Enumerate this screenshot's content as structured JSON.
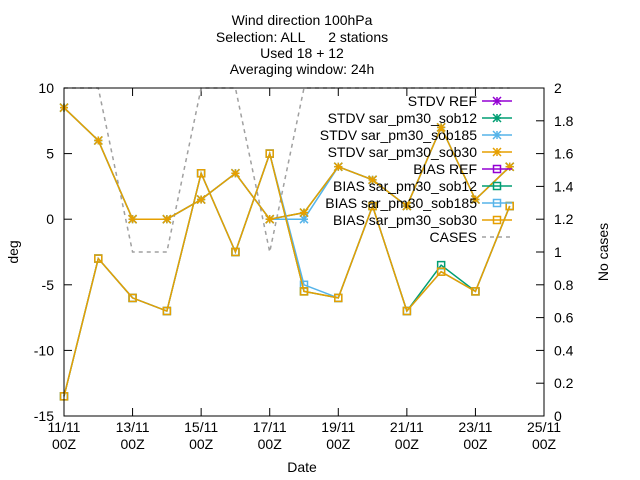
{
  "chart_data": {
    "type": "line",
    "title_lines": [
      "Wind direction 100hPa",
      "Selection: ALL      2 stations",
      "Used 18 + 12",
      "Averaging window: 24h"
    ],
    "xlabel": "Date",
    "ylabel": "deg",
    "y2label": "No cases",
    "x_ticks": [
      {
        "day": 11,
        "l1": "11/11",
        "l2": "00Z"
      },
      {
        "day": 13,
        "l1": "13/11",
        "l2": "00Z"
      },
      {
        "day": 15,
        "l1": "15/11",
        "l2": "00Z"
      },
      {
        "day": 17,
        "l1": "17/11",
        "l2": "00Z"
      },
      {
        "day": 19,
        "l1": "19/11",
        "l2": "00Z"
      },
      {
        "day": 21,
        "l1": "21/11",
        "l2": "00Z"
      },
      {
        "day": 23,
        "l1": "23/11",
        "l2": "00Z"
      },
      {
        "day": 25,
        "l1": "25/11",
        "l2": "00Z"
      }
    ],
    "xlim": [
      11,
      25
    ],
    "ylim": [
      -15,
      10
    ],
    "y_ticks": [
      -15,
      -10,
      -5,
      0,
      5,
      10
    ],
    "y2lim": [
      0,
      2
    ],
    "y2_ticks": [
      0,
      0.2,
      0.4,
      0.6,
      0.8,
      1,
      1.2,
      1.4,
      1.6,
      1.8,
      2
    ],
    "legend_position": "top-right",
    "series": [
      {
        "name": "STDV REF",
        "color": "#9400d3",
        "marker": "star",
        "points": []
      },
      {
        "name": "STDV sar_pm30_sob12",
        "color": "#009e73",
        "marker": "star",
        "points": [
          [
            11,
            8.5
          ],
          [
            12,
            6
          ],
          [
            13,
            0
          ],
          [
            14,
            0
          ],
          [
            15,
            1.5
          ],
          [
            16,
            3.5
          ],
          [
            17,
            0
          ],
          [
            18,
            0.5
          ],
          [
            19,
            4
          ],
          [
            20,
            3
          ],
          [
            21,
            1
          ],
          [
            22,
            7
          ],
          [
            23,
            1.5
          ],
          [
            24,
            4
          ]
        ]
      },
      {
        "name": "STDV sar_pm30_sob185",
        "color": "#56b4e9",
        "marker": "star",
        "points": [
          [
            11,
            8.5
          ],
          [
            12,
            6
          ],
          [
            13,
            0
          ],
          [
            14,
            0
          ],
          [
            15,
            1.5
          ],
          [
            16,
            3.5
          ],
          [
            17,
            0
          ],
          [
            18,
            0
          ],
          [
            19,
            4
          ],
          [
            20,
            3
          ],
          [
            21,
            1
          ],
          [
            22,
            7
          ],
          [
            23,
            1.5
          ],
          [
            24,
            4
          ]
        ]
      },
      {
        "name": "STDV sar_pm30_sob30",
        "color": "#e69f00",
        "marker": "star",
        "points": [
          [
            11,
            8.5
          ],
          [
            12,
            6
          ],
          [
            13,
            0
          ],
          [
            14,
            0
          ],
          [
            15,
            1.5
          ],
          [
            16,
            3.5
          ],
          [
            17,
            0
          ],
          [
            18,
            0.5
          ],
          [
            19,
            4
          ],
          [
            20,
            3
          ],
          [
            21,
            1
          ],
          [
            22,
            7
          ],
          [
            23,
            1.5
          ],
          [
            24,
            4
          ]
        ]
      },
      {
        "name": "BIAS REF",
        "color": "#9400d3",
        "marker": "square",
        "points": []
      },
      {
        "name": "BIAS sar_pm30_sob12",
        "color": "#009e73",
        "marker": "square",
        "points": [
          [
            11,
            -13.5
          ],
          [
            12,
            -3
          ],
          [
            13,
            -6
          ],
          [
            14,
            -7
          ],
          [
            15,
            3.5
          ],
          [
            16,
            -2.5
          ],
          [
            17,
            5
          ],
          [
            18,
            -5.5
          ],
          [
            19,
            -6
          ],
          [
            20,
            1
          ],
          [
            21,
            -7
          ],
          [
            22,
            -3.5
          ],
          [
            23,
            -5.5
          ],
          [
            24,
            1
          ]
        ]
      },
      {
        "name": "BIAS sar_pm30_sob185",
        "color": "#56b4e9",
        "marker": "square",
        "points": [
          [
            11,
            -13.5
          ],
          [
            12,
            -3
          ],
          [
            13,
            -6
          ],
          [
            14,
            -7
          ],
          [
            15,
            3.5
          ],
          [
            16,
            -2.5
          ],
          [
            17,
            5
          ],
          [
            18,
            -5
          ],
          [
            19,
            -6
          ],
          [
            20,
            1
          ],
          [
            21,
            -7
          ],
          [
            22,
            -4
          ],
          [
            23,
            -5.5
          ],
          [
            24,
            1
          ]
        ]
      },
      {
        "name": "BIAS sar_pm30_sob30",
        "color": "#e69f00",
        "marker": "square",
        "points": [
          [
            11,
            -13.5
          ],
          [
            12,
            -3
          ],
          [
            13,
            -6
          ],
          [
            14,
            -7
          ],
          [
            15,
            3.5
          ],
          [
            16,
            -2.5
          ],
          [
            17,
            5
          ],
          [
            18,
            -5.5
          ],
          [
            19,
            -6
          ],
          [
            20,
            1
          ],
          [
            21,
            -7
          ],
          [
            22,
            -4
          ],
          [
            23,
            -5.5
          ],
          [
            24,
            1
          ]
        ]
      }
    ],
    "cases": {
      "name": "CASES",
      "color": "#a0a0a0",
      "axis": "y2",
      "points": [
        [
          11,
          2
        ],
        [
          12,
          2
        ],
        [
          13,
          1
        ],
        [
          14,
          1
        ],
        [
          15,
          2
        ],
        [
          16,
          2
        ],
        [
          17,
          1
        ],
        [
          18,
          2
        ],
        [
          19,
          2
        ],
        [
          20,
          2
        ],
        [
          21,
          2
        ],
        [
          22,
          2
        ],
        [
          23,
          2
        ],
        [
          24,
          2
        ]
      ]
    }
  }
}
